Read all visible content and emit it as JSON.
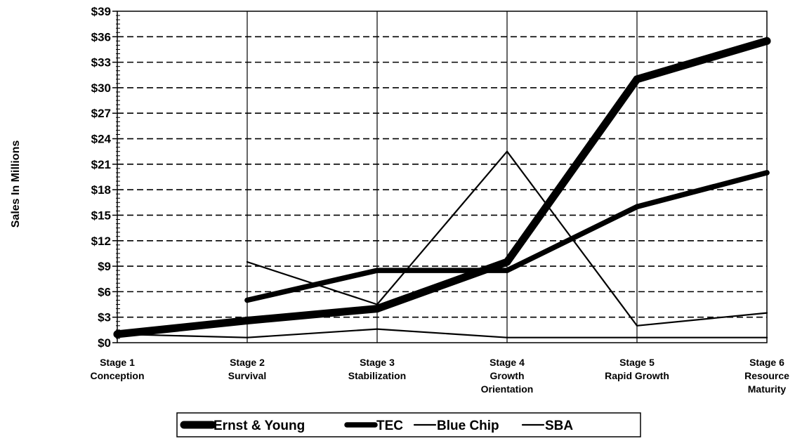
{
  "chart_data": {
    "type": "line",
    "title": "",
    "xlabel": "",
    "ylabel": "Sales In Millions",
    "ylim": [
      0,
      39
    ],
    "yticks": [
      0,
      3,
      6,
      9,
      12,
      15,
      18,
      21,
      24,
      27,
      30,
      33,
      36,
      39
    ],
    "ytick_labels": [
      "$0",
      "$3",
      "$6",
      "$9",
      "$12",
      "$15",
      "$18",
      "$21",
      "$24",
      "$27",
      "$30",
      "$33",
      "$36",
      "$39"
    ],
    "grid": "horizontal-dashed",
    "legend_position": "bottom",
    "categories": [
      [
        "Stage 1",
        "Conception"
      ],
      [
        "Stage 2",
        "Survival"
      ],
      [
        "Stage 3",
        "Stabilization"
      ],
      [
        "Stage 4",
        "Growth",
        "Orientation"
      ],
      [
        "Stage 5",
        "Rapid Growth"
      ],
      [
        "Stage 6",
        "Resource",
        "Maturity"
      ]
    ],
    "series": [
      {
        "name": "Ernst & Young",
        "values": [
          1.0,
          2.6,
          4.0,
          9.5,
          31.0,
          35.5
        ],
        "color": "#000000",
        "weight": "heavy"
      },
      {
        "name": "TEC",
        "values": [
          null,
          5.0,
          8.5,
          8.5,
          16.0,
          20.0
        ],
        "color": "#000000",
        "weight": "bold"
      },
      {
        "name": "Blue Chip",
        "values": [
          null,
          9.5,
          4.5,
          22.5,
          2.0,
          3.5
        ],
        "color": "#000000",
        "weight": "thin"
      },
      {
        "name": "SBA",
        "values": [
          1.0,
          0.6,
          1.6,
          0.6,
          0.6,
          0.6
        ],
        "color": "#000000",
        "weight": "thin"
      }
    ]
  }
}
